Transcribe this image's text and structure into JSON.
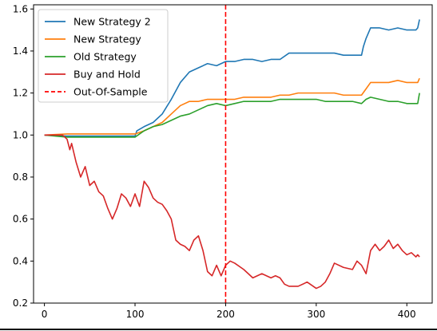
{
  "chart_data": {
    "type": "line",
    "title": "",
    "xlabel": "",
    "ylabel": "",
    "xlim": [
      -12,
      428
    ],
    "ylim": [
      0.2,
      1.62
    ],
    "x_ticks": [
      0,
      100,
      200,
      300,
      400
    ],
    "y_ticks": [
      0.2,
      0.4,
      0.6,
      0.8,
      1.0,
      1.2,
      1.4,
      1.6
    ],
    "x_tick_labels": [
      "0",
      "100",
      "200",
      "300",
      "400"
    ],
    "y_tick_labels": [
      "0.2",
      "0.4",
      "0.6",
      "0.8",
      "1.0",
      "1.2",
      "1.4",
      "1.6"
    ],
    "grid": false,
    "legend_position": "top-left",
    "series": [
      {
        "name": "New Strategy 2",
        "color": "#1f77b4",
        "x": [
          0,
          25,
          100,
          102,
          110,
          120,
          130,
          140,
          150,
          160,
          170,
          180,
          190,
          200,
          210,
          220,
          230,
          240,
          250,
          260,
          270,
          280,
          290,
          300,
          310,
          320,
          330,
          340,
          350,
          352,
          355,
          360,
          370,
          380,
          390,
          400,
          410,
          412,
          414
        ],
        "y": [
          1.0,
          0.995,
          0.995,
          1.02,
          1.04,
          1.06,
          1.1,
          1.17,
          1.25,
          1.3,
          1.32,
          1.34,
          1.33,
          1.35,
          1.35,
          1.36,
          1.36,
          1.35,
          1.36,
          1.36,
          1.39,
          1.39,
          1.39,
          1.39,
          1.39,
          1.39,
          1.38,
          1.38,
          1.38,
          1.42,
          1.46,
          1.51,
          1.51,
          1.5,
          1.51,
          1.5,
          1.5,
          1.51,
          1.55
        ]
      },
      {
        "name": "New Strategy",
        "color": "#ff7f0e",
        "x": [
          0,
          25,
          100,
          110,
          120,
          130,
          140,
          150,
          160,
          170,
          180,
          190,
          200,
          210,
          220,
          230,
          240,
          250,
          260,
          270,
          280,
          290,
          300,
          310,
          320,
          330,
          340,
          350,
          355,
          360,
          370,
          380,
          390,
          400,
          410,
          412,
          414
        ],
        "y": [
          1.0,
          1.005,
          1.005,
          1.02,
          1.04,
          1.06,
          1.1,
          1.14,
          1.16,
          1.16,
          1.17,
          1.17,
          1.17,
          1.17,
          1.18,
          1.18,
          1.18,
          1.18,
          1.19,
          1.19,
          1.2,
          1.2,
          1.2,
          1.2,
          1.2,
          1.19,
          1.19,
          1.19,
          1.22,
          1.25,
          1.25,
          1.25,
          1.26,
          1.25,
          1.25,
          1.25,
          1.27
        ]
      },
      {
        "name": "Old Strategy",
        "color": "#2ca02c",
        "x": [
          0,
          25,
          100,
          110,
          120,
          130,
          140,
          150,
          160,
          170,
          180,
          190,
          200,
          210,
          220,
          230,
          240,
          250,
          260,
          270,
          280,
          290,
          300,
          310,
          320,
          330,
          340,
          350,
          355,
          360,
          370,
          380,
          390,
          400,
          410,
          412,
          414
        ],
        "y": [
          1.0,
          0.99,
          0.99,
          1.02,
          1.04,
          1.05,
          1.07,
          1.09,
          1.1,
          1.12,
          1.14,
          1.15,
          1.14,
          1.15,
          1.16,
          1.16,
          1.16,
          1.16,
          1.17,
          1.17,
          1.17,
          1.17,
          1.17,
          1.16,
          1.16,
          1.16,
          1.16,
          1.15,
          1.17,
          1.18,
          1.17,
          1.16,
          1.16,
          1.15,
          1.15,
          1.15,
          1.2
        ]
      },
      {
        "name": "Buy and Hold",
        "color": "#d62728",
        "x": [
          0,
          20,
          25,
          28,
          30,
          35,
          40,
          45,
          50,
          55,
          60,
          65,
          70,
          75,
          80,
          85,
          90,
          95,
          100,
          105,
          110,
          115,
          120,
          125,
          130,
          135,
          140,
          145,
          150,
          155,
          160,
          165,
          170,
          175,
          180,
          185,
          190,
          195,
          200,
          205,
          210,
          220,
          230,
          240,
          250,
          255,
          260,
          265,
          270,
          280,
          290,
          300,
          305,
          310,
          315,
          320,
          330,
          340,
          345,
          350,
          355,
          360,
          365,
          370,
          375,
          380,
          385,
          390,
          395,
          400,
          405,
          410,
          412,
          414
        ],
        "y": [
          1.0,
          1.0,
          0.98,
          0.93,
          0.96,
          0.87,
          0.8,
          0.85,
          0.76,
          0.78,
          0.73,
          0.71,
          0.65,
          0.6,
          0.65,
          0.72,
          0.7,
          0.66,
          0.72,
          0.66,
          0.78,
          0.75,
          0.7,
          0.68,
          0.67,
          0.64,
          0.6,
          0.5,
          0.48,
          0.47,
          0.45,
          0.5,
          0.52,
          0.45,
          0.35,
          0.33,
          0.38,
          0.33,
          0.38,
          0.4,
          0.39,
          0.36,
          0.32,
          0.34,
          0.32,
          0.33,
          0.32,
          0.29,
          0.28,
          0.28,
          0.3,
          0.27,
          0.28,
          0.3,
          0.34,
          0.39,
          0.37,
          0.36,
          0.4,
          0.38,
          0.34,
          0.45,
          0.48,
          0.45,
          0.47,
          0.5,
          0.46,
          0.48,
          0.45,
          0.43,
          0.44,
          0.42,
          0.43,
          0.42
        ]
      }
    ],
    "annotations": [
      {
        "name": "Out-Of-Sample",
        "type": "vertical-line",
        "x": 200,
        "color": "#ff0000",
        "style": "dashed"
      }
    ]
  }
}
